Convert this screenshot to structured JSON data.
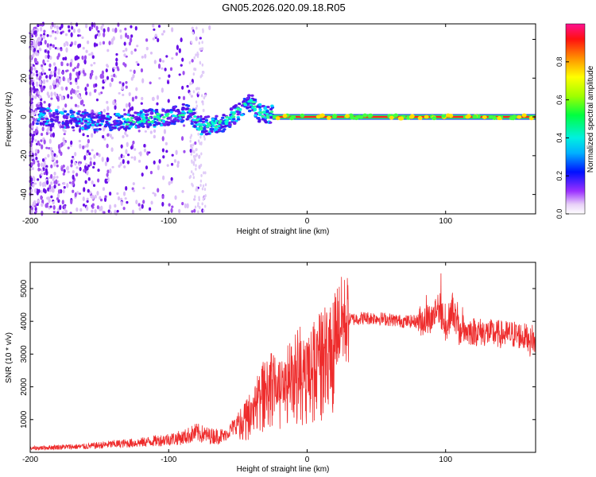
{
  "title": "GN05.2026.020.09.18.R05",
  "chart_data": [
    {
      "type": "heatmap",
      "xlabel": "Height of straight line (km)",
      "ylabel": "Frequency (Hz)",
      "xlim": [
        -200,
        165
      ],
      "ylim": [
        -50,
        48
      ],
      "xticks": [
        -200,
        -100,
        0,
        100
      ],
      "yticks": [
        -40,
        -20,
        0,
        20,
        40
      ],
      "colorbar": {
        "label": "Normalized spectral amplitude",
        "range": [
          0,
          1
        ],
        "ticks": [
          0.0,
          0.2,
          0.4,
          0.6,
          0.8
        ]
      },
      "ridge": [
        {
          "x": -190,
          "y": 0
        },
        {
          "x": -160,
          "y": -2
        },
        {
          "x": -140,
          "y": -3
        },
        {
          "x": -120,
          "y": -1
        },
        {
          "x": -100,
          "y": 0
        },
        {
          "x": -85,
          "y": 3
        },
        {
          "x": -78,
          "y": -5
        },
        {
          "x": -60,
          "y": -3
        },
        {
          "x": -45,
          "y": 5
        },
        {
          "x": -40,
          "y": 8
        },
        {
          "x": -35,
          "y": 2
        },
        {
          "x": -20,
          "y": 1
        },
        {
          "x": 0,
          "y": 0
        },
        {
          "x": 165,
          "y": 0
        }
      ]
    },
    {
      "type": "line",
      "xlabel": "Height of straight line (km)",
      "ylabel": "SNR (10 * v/v)",
      "xlim": [
        -200,
        165
      ],
      "ylim": [
        0,
        5800
      ],
      "xticks": [
        -200,
        -100,
        0,
        100
      ],
      "yticks": [
        1000,
        2000,
        3000,
        4000,
        5000
      ],
      "color": "#ee2c2c",
      "series": [
        {
          "x": [
            -200,
            -180,
            -160,
            -140,
            -120,
            -100,
            -90,
            -80,
            -70,
            -60,
            -50,
            -40,
            -35,
            -30,
            -25,
            -20,
            -15,
            -10,
            -5,
            0,
            5,
            10,
            15,
            20,
            25,
            30,
            40,
            50,
            60,
            70,
            80,
            90,
            95,
            100,
            105,
            110,
            120,
            130,
            140,
            150,
            160,
            165
          ],
          "values": [
            120,
            160,
            180,
            250,
            300,
            400,
            450,
            600,
            500,
            500,
            900,
            1400,
            1800,
            2200,
            2300,
            2100,
            2400,
            2700,
            2900,
            2500,
            3000,
            3200,
            3500,
            3800,
            4000,
            4050,
            4100,
            4100,
            4050,
            4000,
            4000,
            4100,
            4500,
            3800,
            4400,
            3700,
            3700,
            3650,
            3600,
            3600,
            3500,
            3400
          ]
        }
      ]
    }
  ]
}
